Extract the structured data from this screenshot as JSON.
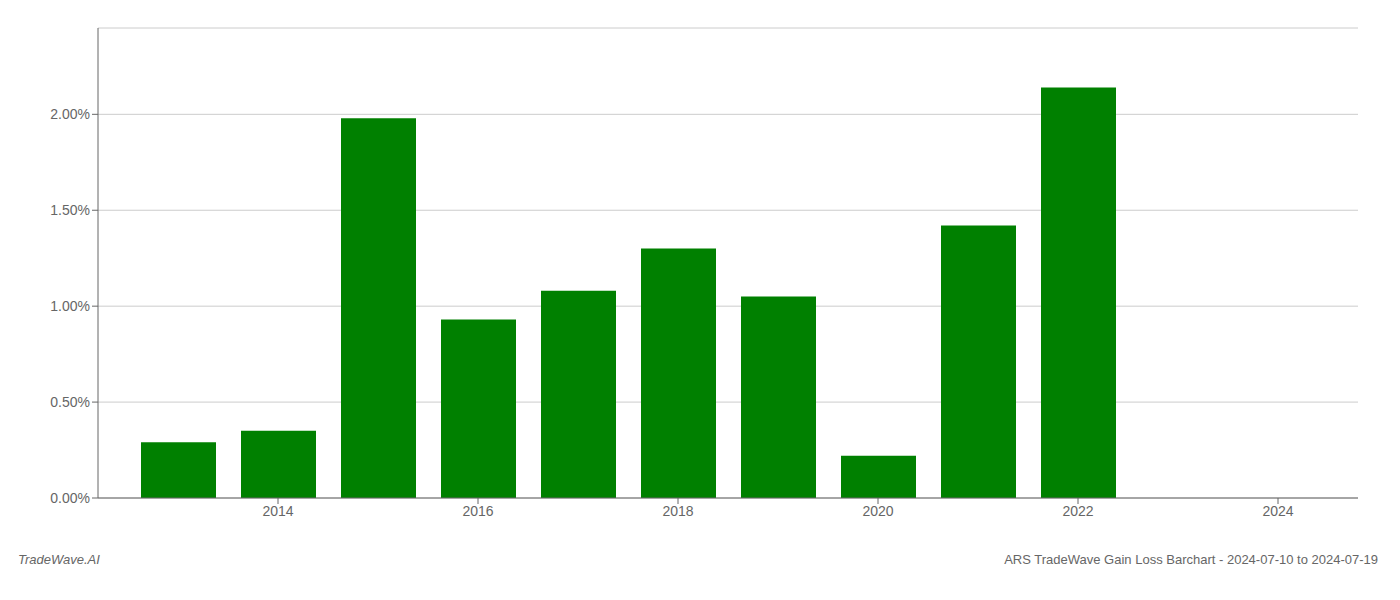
{
  "chart_data": {
    "type": "bar",
    "x": [
      2013,
      2014,
      2015,
      2016,
      2017,
      2018,
      2019,
      2020,
      2021,
      2022
    ],
    "values": [
      0.0029,
      0.0035,
      0.0198,
      0.0093,
      0.0108,
      0.013,
      0.0105,
      0.0022,
      0.0142,
      0.0214
    ],
    "color": "#008000",
    "xlim": [
      2012.2,
      2024.8
    ],
    "xticks": [
      2014,
      2016,
      2018,
      2020,
      2022,
      2024
    ],
    "ylim": [
      0,
      0.0245
    ],
    "yticks": [
      {
        "value": 0.0,
        "label": "0.00%"
      },
      {
        "value": 0.005,
        "label": "0.50%"
      },
      {
        "value": 0.01,
        "label": "1.00%"
      },
      {
        "value": 0.015,
        "label": "1.50%"
      },
      {
        "value": 0.02,
        "label": "2.00%"
      }
    ],
    "grid": true,
    "annotations": [
      {
        "text": "TradeWave.AI"
      },
      {
        "text": "ARS TradeWave Gain Loss Barchart - 2024-07-10 to 2024-07-19"
      }
    ]
  }
}
